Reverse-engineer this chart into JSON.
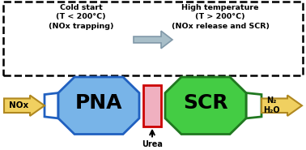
{
  "bg_color": "#ffffff",
  "cold_start_text": "Cold start\n(T < 200°C)\n(NOx trapping)",
  "high_temp_text": "High temperature\n(T > 200°C)\n(NOx release and SCR)",
  "gray_arrow_color": "#a8bec8",
  "gray_arrow_edge": "#8098a8",
  "pna_color": "#78b4e8",
  "pna_edge_color": "#2060c0",
  "scr_color": "#44cc44",
  "scr_edge_color": "#207820",
  "urea_color": "#f0b0c0",
  "urea_edge_color": "#cc0000",
  "nox_arrow_color": "#f0d060",
  "nox_arrow_edge": "#b08820",
  "n2_arrow_color": "#f0d060",
  "n2_arrow_edge": "#b08820",
  "pna_label": "PNA",
  "scr_label": "SCR",
  "nox_label": "NOx",
  "n2_label": "N₂\nH₂O",
  "urea_label": "Urea",
  "lw": 2.0
}
